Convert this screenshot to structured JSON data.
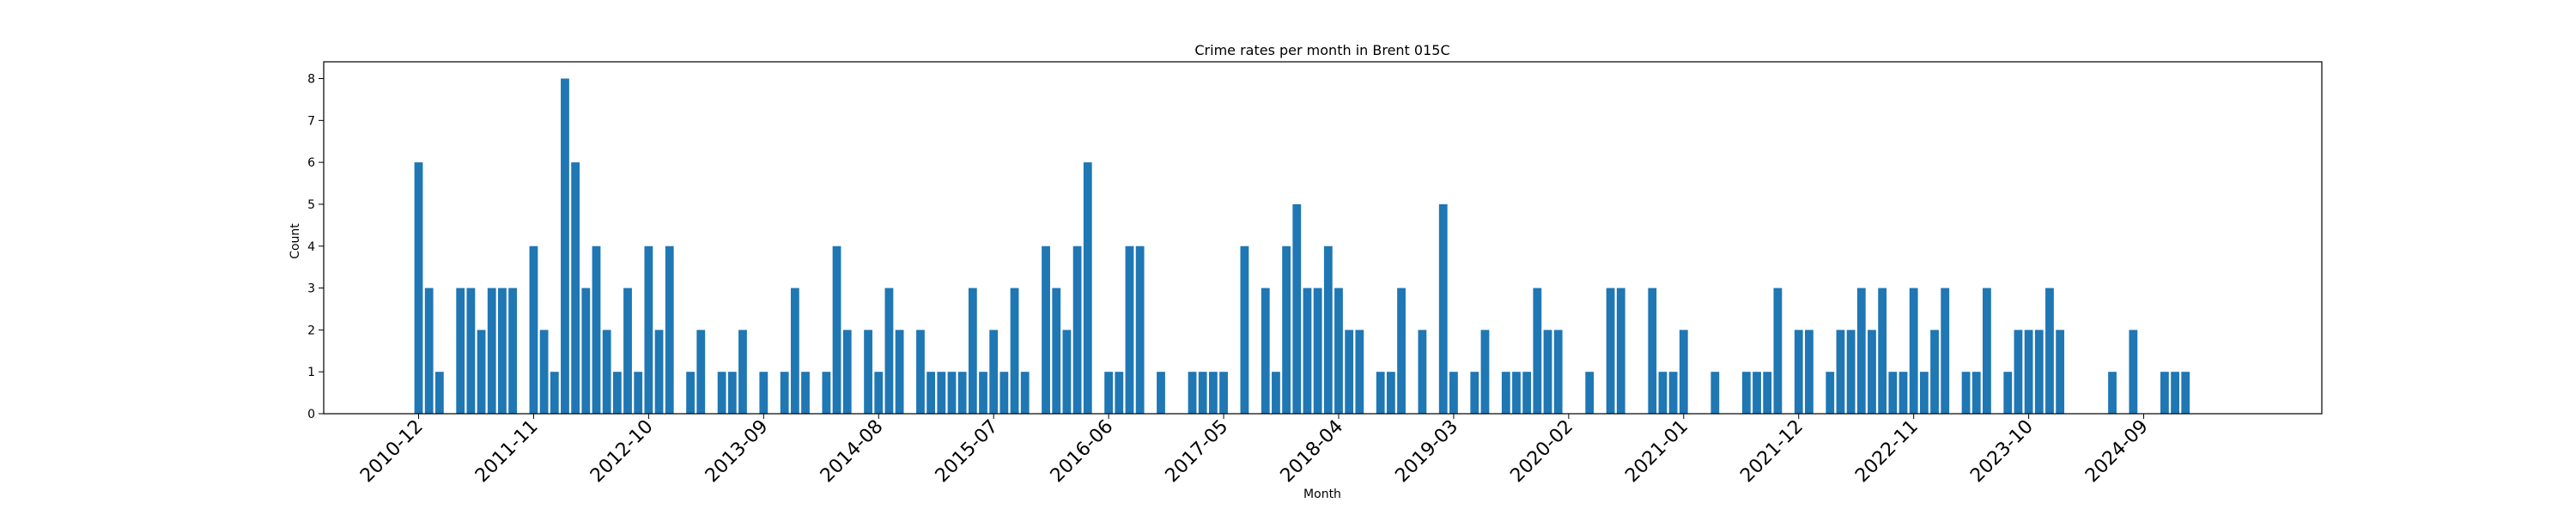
{
  "chart_data": {
    "type": "bar",
    "title": "Crime rates per month in Brent 015C",
    "xlabel": "Month",
    "ylabel": "Count",
    "ylim": [
      0,
      8.4
    ],
    "yticks": [
      0,
      1,
      2,
      3,
      4,
      5,
      6,
      7,
      8
    ],
    "xtick_labels": [
      "2010-12",
      "2011-11",
      "2012-10",
      "2013-09",
      "2014-08",
      "2015-07",
      "2016-06",
      "2017-05",
      "2018-04",
      "2019-03",
      "2020-02",
      "2021-01",
      "2021-12",
      "2022-11",
      "2023-10",
      "2024-09"
    ],
    "color": "#1f77b4",
    "start_month": "2010-12",
    "values": [
      6,
      3,
      1,
      0,
      3,
      3,
      2,
      3,
      3,
      3,
      0,
      4,
      2,
      1,
      8,
      6,
      3,
      4,
      2,
      1,
      3,
      1,
      4,
      2,
      4,
      0,
      1,
      2,
      0,
      1,
      1,
      2,
      0,
      1,
      0,
      1,
      3,
      1,
      0,
      1,
      4,
      2,
      0,
      2,
      1,
      3,
      2,
      0,
      2,
      1,
      1,
      1,
      1,
      3,
      1,
      2,
      1,
      3,
      1,
      0,
      4,
      3,
      2,
      4,
      6,
      0,
      1,
      1,
      4,
      4,
      0,
      1,
      0,
      0,
      1,
      1,
      1,
      1,
      0,
      4,
      0,
      3,
      1,
      4,
      5,
      3,
      3,
      4,
      3,
      2,
      2,
      0,
      1,
      1,
      3,
      0,
      2,
      0,
      5,
      1,
      0,
      1,
      2,
      0,
      1,
      1,
      1,
      3,
      2,
      2,
      0,
      0,
      1,
      0,
      3,
      3,
      0,
      0,
      3,
      1,
      1,
      2,
      0,
      0,
      1,
      0,
      0,
      1,
      1,
      1,
      3,
      0,
      2,
      2,
      0,
      1,
      2,
      2,
      3,
      2,
      3,
      1,
      1,
      3,
      1,
      2,
      3,
      0,
      1,
      1,
      3,
      0,
      1,
      2,
      2,
      2,
      3,
      2,
      0,
      0,
      0,
      0,
      1,
      0,
      2,
      0,
      0,
      1,
      1,
      1
    ]
  }
}
